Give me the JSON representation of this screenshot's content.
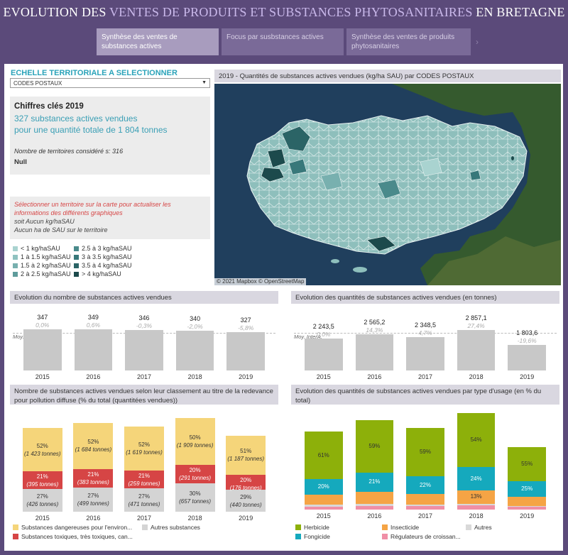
{
  "header": {
    "title_part1": "EVOLUTION DES ",
    "title_part2": "VENTES DE PRODUITS ET SUBSTANCES PHYTOSANITAIRES",
    "title_part3": " EN BRETAGNE",
    "tabs": [
      {
        "label": "Synthèse des ventes de substances actives"
      },
      {
        "label": "Focus par susbstances actives"
      },
      {
        "label": "Synthèse des ventes de produits phytosanitaires"
      }
    ],
    "tab_next_icon": "chevron-right-icon"
  },
  "selector": {
    "title": "ECHELLE TERRITORIALE A SELECTIONNER",
    "value": "CODES POSTAUX"
  },
  "kpi": {
    "heading": "Chiffres clés 2019",
    "line1": "327 substances actives vendues",
    "line2": "pour une quantité totale de 1 804 tonnes",
    "territories": "Nombre de territoires considéré s: 316",
    "null_label": "Null"
  },
  "instructions": {
    "line1": "Sélectionner un territoire sur la carte pour actualiser les",
    "line2": "informations des différents graphiques",
    "line3": "soit Aucun kg/haSAU",
    "line4": "Aucun ha de SAU sur le territoire"
  },
  "map_legend": [
    {
      "label": "< 1 kg/haSAU",
      "color": "#a9d3d0"
    },
    {
      "label": "1 à 1.5 kg/haSAU",
      "color": "#8fc2c0"
    },
    {
      "label": "1.5 à 2 kg/haSAU",
      "color": "#78b0af"
    },
    {
      "label": "2 à 2.5 kg/haSAU",
      "color": "#5f9c9c"
    },
    {
      "label": "2.5 à 3 kg/haSAU",
      "color": "#4a8a8b"
    },
    {
      "label": "3 à 3.5 kg/haSAU",
      "color": "#38787a"
    },
    {
      "label": "3.5 à 4 kg/haSAU",
      "color": "#2b6466"
    },
    {
      "label": "> 4 kg/haSAU",
      "color": "#1c4a4c"
    }
  ],
  "map": {
    "title": "2019 - Quantités de substances actives vendues (kg/ha SAU) par CODES POSTAUX",
    "credit": "© 2021 Mapbox  © OpenStreetMap"
  },
  "chart_data": [
    {
      "type": "bar",
      "title": "Evolution du nombre de substances actives vendues",
      "categories": [
        "2015",
        "2016",
        "2017",
        "2018",
        "2019"
      ],
      "values": [
        347,
        349,
        346,
        340,
        327
      ],
      "value_labels": [
        "347",
        "349",
        "346",
        "340",
        "327"
      ],
      "change_labels": [
        "0,0%",
        "0,6%",
        "-0,3%",
        "-2,0%",
        "-5,8%"
      ],
      "reference_label": "Moy. InterA.",
      "ylim": [
        0,
        350
      ]
    },
    {
      "type": "bar",
      "title": "Evolution des quantités de substances actives vendues (en tonnes)",
      "categories": [
        "2015",
        "2016",
        "2017",
        "2018",
        "2019"
      ],
      "values": [
        2243.5,
        2565.2,
        2348.5,
        2857.1,
        1803.6
      ],
      "value_labels": [
        "2 243,5",
        "2 565,2",
        "2 348,5",
        "2 857,1",
        "1 803,6"
      ],
      "change_labels": [
        "0,0%",
        "14,3%",
        "4,7%",
        "27,4%",
        "-19,6%"
      ],
      "reference_label": "Moy. InterA.",
      "ylim": [
        0,
        2900
      ]
    },
    {
      "type": "bar",
      "title": "Nombre de substances actives vendues selon leur classement au titre de la redevance pour pollution diffuse (% du total (quantitées vendues))",
      "categories": [
        "2015",
        "2016",
        "2017",
        "2018",
        "2019"
      ],
      "series": [
        {
          "name": "Autres substances",
          "color": "#d4d4d4",
          "values": [
            426,
            499,
            471,
            657,
            440
          ],
          "pct_labels": [
            "27%",
            "27%",
            "27%",
            "30%",
            "29%"
          ],
          "qty_labels": [
            "(426 tonnes)",
            "(499 tonnes)",
            "(471 tonnes)",
            "(657 tonnes)",
            "(440 tonnes)"
          ]
        },
        {
          "name": "Substances toxiques, très toxiques, can...",
          "color": "#d64545",
          "values": [
            395,
            383,
            259,
            291,
            176
          ],
          "pct_labels": [
            "21%",
            "21%",
            "21%",
            "20%",
            "20%"
          ],
          "qty_labels": [
            "(395 tonnes)",
            "(383 tonnes)",
            "(259 tonnes)",
            "(291 tonnes)",
            "(176 tonnes)"
          ]
        },
        {
          "name": "Substances dangereuses pour l'environ...",
          "color": "#f5d57a",
          "values": [
            1423,
            1684,
            1619,
            1909,
            1187
          ],
          "pct_labels": [
            "52%",
            "52%",
            "52%",
            "50%",
            "51%"
          ],
          "qty_labels": [
            "(1 423 tonnes)",
            "(1 684 tonnes)",
            "(1 619 tonnes)",
            "(1 909 tonnes)",
            "(1 187 tonnes)"
          ]
        }
      ]
    },
    {
      "type": "bar",
      "title": "Evolution des quantités de substances actives vendues par type d'usage (en  % du total)",
      "categories": [
        "2015",
        "2016",
        "2017",
        "2018",
        "2019"
      ],
      "totals": [
        2243.5,
        2565.2,
        2348.5,
        2857.1,
        1803.6
      ],
      "series": [
        {
          "name": "Régulateurs de croissan...",
          "color": "#f08fa6",
          "values": [
            4,
            4,
            4,
            4,
            4
          ]
        },
        {
          "name": "Autres",
          "color": "#d9d9d9",
          "values": [
            2,
            2,
            2,
            2,
            2
          ]
        },
        {
          "name": "Insecticide",
          "color": "#f5a445",
          "values": [
            13,
            14,
            13,
            13,
            14
          ]
        },
        {
          "name": "Fongicide",
          "color": "#15a9bd",
          "values": [
            20,
            21,
            22,
            24,
            25
          ],
          "pct_labels": [
            "20%",
            "21%",
            "22%",
            "24%",
            "25%"
          ]
        },
        {
          "name": "Herbicide",
          "color": "#8db00a",
          "values": [
            61,
            59,
            59,
            54,
            55
          ],
          "pct_labels": [
            "61%",
            "59%",
            "59%",
            "54%",
            "55%"
          ]
        }
      ],
      "insecticide_label": {
        "year_index": 3,
        "text": "13%"
      }
    }
  ],
  "legend_quarter3": [
    {
      "label": "Substances dangereuses pour l'environ...",
      "color": "#f5d57a"
    },
    {
      "label": "Autres substances",
      "color": "#d4d4d4"
    },
    {
      "label": "Substances toxiques, très toxiques, can...",
      "color": "#d64545"
    }
  ],
  "legend_quarter4": [
    {
      "label": "Herbicide",
      "color": "#8db00a"
    },
    {
      "label": "Insecticide",
      "color": "#f5a445"
    },
    {
      "label": "Autres",
      "color": "#d9d9d9"
    },
    {
      "label": "Fongicide",
      "color": "#15a9bd"
    },
    {
      "label": "Régulateurs de croissan...",
      "color": "#f08fa6"
    }
  ]
}
